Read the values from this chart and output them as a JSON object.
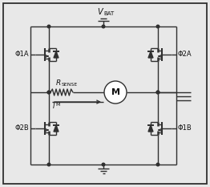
{
  "bg_color": "#e8e8e8",
  "border_color": "#303030",
  "line_color": "#303030",
  "text_color": "#101010",
  "fig_width": 2.62,
  "fig_height": 2.33,
  "dpi": 100,
  "phi1a": "Φ1A",
  "phi2a": "Φ2A",
  "phi1b": "Φ1B",
  "phi2b": "Φ2B",
  "rsense_main": "R",
  "rsense_sub": "SENSE",
  "im_main": "I",
  "im_sub": "M",
  "motor": "M",
  "vbat_main": "V",
  "vbat_sub": "BAT"
}
